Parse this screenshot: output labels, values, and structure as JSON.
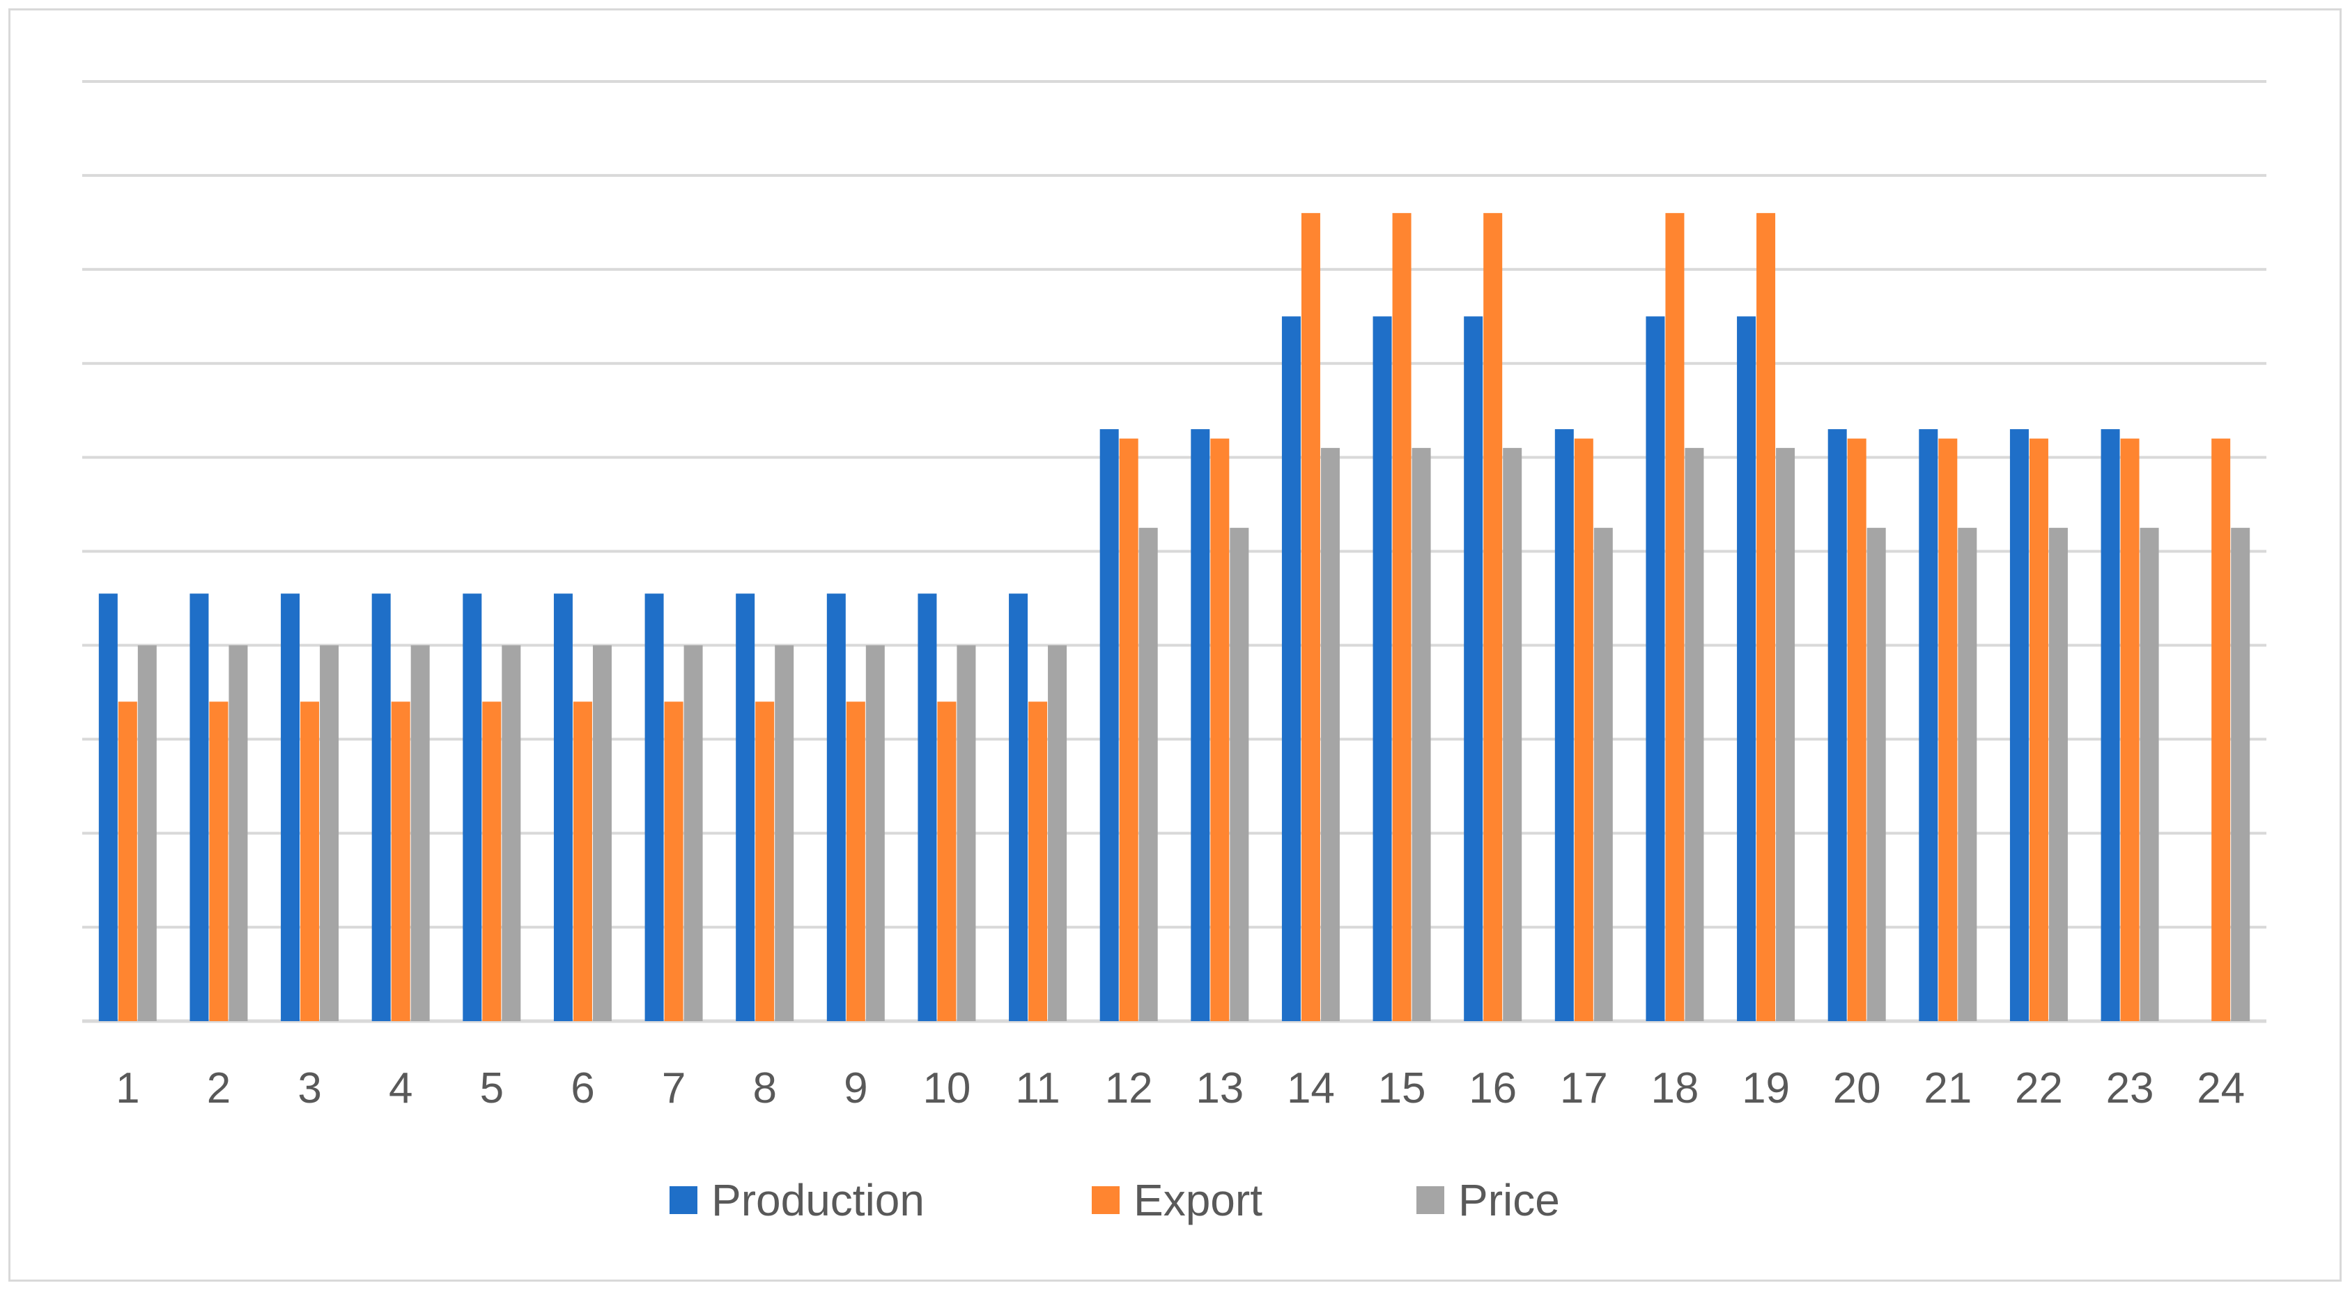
{
  "chart_data": {
    "type": "bar",
    "title": "",
    "xlabel": "",
    "ylabel": "",
    "categories": [
      "1",
      "2",
      "3",
      "4",
      "5",
      "6",
      "7",
      "8",
      "9",
      "10",
      "11",
      "12",
      "13",
      "14",
      "15",
      "16",
      "17",
      "18",
      "19",
      "20",
      "21",
      "22",
      "23",
      "24"
    ],
    "ylim": [
      0,
      10
    ],
    "y_gridline_count": 10,
    "grid": true,
    "legend_position": "bottom",
    "series": [
      {
        "name": "Production",
        "color": "#1f6fc8",
        "values": [
          4.55,
          4.55,
          4.55,
          4.55,
          4.55,
          4.55,
          4.55,
          4.55,
          4.55,
          4.55,
          4.55,
          6.3,
          6.3,
          7.5,
          7.5,
          7.5,
          6.3,
          7.5,
          7.5,
          6.3,
          6.3,
          6.3,
          6.3,
          0
        ]
      },
      {
        "name": "Export",
        "color": "#ff8530",
        "values": [
          3.4,
          3.4,
          3.4,
          3.4,
          3.4,
          3.4,
          3.4,
          3.4,
          3.4,
          3.4,
          3.4,
          6.2,
          6.2,
          8.6,
          8.6,
          8.6,
          6.2,
          8.6,
          8.6,
          6.2,
          6.2,
          6.2,
          6.2,
          6.2
        ]
      },
      {
        "name": "Price",
        "color": "#a5a5a5",
        "values": [
          4.0,
          4.0,
          4.0,
          4.0,
          4.0,
          4.0,
          4.0,
          4.0,
          4.0,
          4.0,
          4.0,
          5.25,
          5.25,
          6.1,
          6.1,
          6.1,
          5.25,
          6.1,
          6.1,
          5.25,
          5.25,
          5.25,
          5.25,
          5.25
        ]
      }
    ]
  },
  "legend": {
    "production_label": "Production",
    "export_label": "Export",
    "price_label": "Price"
  },
  "colors": {
    "production": "#1f6fc8",
    "export": "#ff8530",
    "price": "#a5a5a5",
    "grid": "#d9d9d9",
    "tick_text": "#595959"
  }
}
